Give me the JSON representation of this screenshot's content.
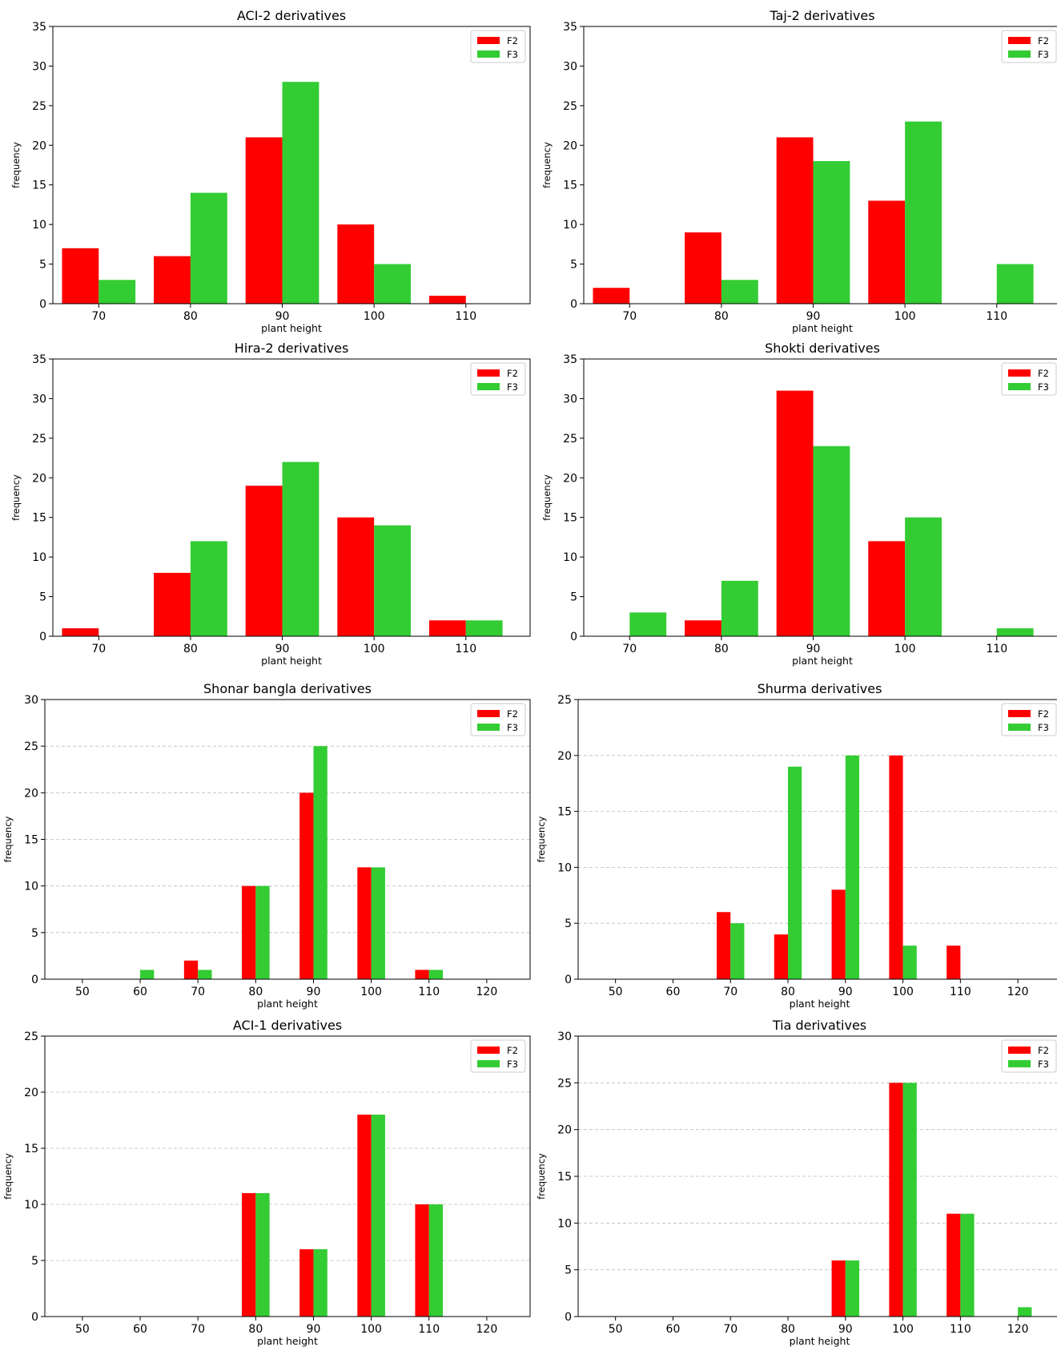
{
  "colors": {
    "F2": "#ff0000",
    "F3": "#33cc33"
  },
  "chart_data": [
    {
      "type": "bar",
      "title": "ACI-2 derivatives",
      "xlabel": "plant height",
      "ylabel": "frequency",
      "categories": [
        70,
        80,
        90,
        100,
        110
      ],
      "xlim": [
        65,
        117
      ],
      "ylim": [
        0,
        35
      ],
      "yticks": [
        0,
        5,
        10,
        15,
        20,
        25,
        30,
        35
      ],
      "xticks": [
        70,
        80,
        90,
        100,
        110
      ],
      "grid": false,
      "legend": "top-right",
      "series": [
        {
          "name": "F2",
          "values": [
            7,
            6,
            21,
            10,
            1
          ]
        },
        {
          "name": "F3",
          "values": [
            3,
            14,
            28,
            5,
            0
          ]
        }
      ]
    },
    {
      "type": "bar",
      "title": "Taj-2 derivatives",
      "xlabel": "plant height",
      "ylabel": "frequency",
      "categories": [
        70,
        80,
        90,
        100,
        110
      ],
      "xlim": [
        65,
        117
      ],
      "ylim": [
        0,
        35
      ],
      "yticks": [
        0,
        5,
        10,
        15,
        20,
        25,
        30,
        35
      ],
      "xticks": [
        70,
        80,
        90,
        100,
        110
      ],
      "grid": false,
      "legend": "top-right",
      "series": [
        {
          "name": "F2",
          "values": [
            2,
            9,
            21,
            13,
            0
          ]
        },
        {
          "name": "F3",
          "values": [
            0,
            3,
            18,
            23,
            5
          ]
        }
      ]
    },
    {
      "type": "bar",
      "title": "Hira-2 derivatives",
      "xlabel": "plant height",
      "ylabel": "frequency",
      "categories": [
        70,
        80,
        90,
        100,
        110
      ],
      "xlim": [
        65,
        117
      ],
      "ylim": [
        0,
        35
      ],
      "yticks": [
        0,
        5,
        10,
        15,
        20,
        25,
        30,
        35
      ],
      "xticks": [
        70,
        80,
        90,
        100,
        110
      ],
      "grid": false,
      "legend": "top-right",
      "series": [
        {
          "name": "F2",
          "values": [
            1,
            8,
            19,
            15,
            2
          ]
        },
        {
          "name": "F3",
          "values": [
            0,
            12,
            22,
            14,
            2
          ]
        }
      ]
    },
    {
      "type": "bar",
      "title": "Shokti derivatives",
      "xlabel": "plant height",
      "ylabel": "frequency",
      "categories": [
        70,
        80,
        90,
        100,
        110
      ],
      "xlim": [
        65,
        117
      ],
      "ylim": [
        0,
        35
      ],
      "yticks": [
        0,
        5,
        10,
        15,
        20,
        25,
        30,
        35
      ],
      "xticks": [
        70,
        80,
        90,
        100,
        110
      ],
      "grid": false,
      "legend": "top-right",
      "series": [
        {
          "name": "F2",
          "values": [
            0,
            2,
            31,
            12,
            0
          ]
        },
        {
          "name": "F3",
          "values": [
            3,
            7,
            24,
            15,
            1
          ]
        }
      ]
    },
    {
      "type": "bar",
      "title": "Shonar bangla derivatives",
      "xlabel": "plant height",
      "ylabel": "frequency",
      "categories": [
        50,
        60,
        70,
        80,
        90,
        100,
        110,
        120
      ],
      "xlim": [
        43.5,
        127.5
      ],
      "ylim": [
        0,
        30
      ],
      "yticks": [
        0,
        5,
        10,
        15,
        20,
        25,
        30
      ],
      "xticks": [
        50,
        60,
        70,
        80,
        90,
        100,
        110,
        120
      ],
      "grid": true,
      "legend": "top-right",
      "series": [
        {
          "name": "F2",
          "values": [
            0,
            0,
            2,
            10,
            20,
            12,
            1,
            0
          ]
        },
        {
          "name": "F3",
          "values": [
            0,
            1,
            1,
            10,
            25,
            12,
            1,
            0
          ]
        }
      ]
    },
    {
      "type": "bar",
      "title": "Shurma derivatives",
      "xlabel": "plant height",
      "ylabel": "frequency",
      "categories": [
        50,
        60,
        70,
        80,
        90,
        100,
        110,
        120
      ],
      "xlim": [
        43.5,
        127.5
      ],
      "ylim": [
        0,
        25
      ],
      "yticks": [
        0,
        5,
        10,
        15,
        20,
        25
      ],
      "xticks": [
        50,
        60,
        70,
        80,
        90,
        100,
        110,
        120
      ],
      "grid": true,
      "legend": "top-right",
      "series": [
        {
          "name": "F2",
          "values": [
            0,
            0,
            6,
            4,
            8,
            20,
            3,
            0
          ]
        },
        {
          "name": "F3",
          "values": [
            0,
            0,
            5,
            19,
            20,
            3,
            0,
            0
          ]
        }
      ]
    },
    {
      "type": "bar",
      "title": "ACI-1 derivatives",
      "xlabel": "plant height",
      "ylabel": "frequency",
      "categories": [
        50,
        60,
        70,
        80,
        90,
        100,
        110,
        120
      ],
      "xlim": [
        43.5,
        127.5
      ],
      "ylim": [
        0,
        25
      ],
      "yticks": [
        0,
        5,
        10,
        15,
        20,
        25
      ],
      "xticks": [
        50,
        60,
        70,
        80,
        90,
        100,
        110,
        120
      ],
      "grid": true,
      "legend": "top-right",
      "series": [
        {
          "name": "F2",
          "values": [
            0,
            0,
            0,
            11,
            6,
            18,
            10,
            0
          ]
        },
        {
          "name": "F3",
          "values": [
            0,
            0,
            0,
            11,
            6,
            18,
            10,
            0
          ]
        }
      ]
    },
    {
      "type": "bar",
      "title": "Tia derivatives",
      "xlabel": "plant height",
      "ylabel": "frequency",
      "categories": [
        50,
        60,
        70,
        80,
        90,
        100,
        110,
        120
      ],
      "xlim": [
        43.5,
        127.5
      ],
      "ylim": [
        0,
        30
      ],
      "yticks": [
        0,
        5,
        10,
        15,
        20,
        25,
        30
      ],
      "xticks": [
        50,
        60,
        70,
        80,
        90,
        100,
        110,
        120
      ],
      "grid": true,
      "legend": "top-right",
      "series": [
        {
          "name": "F2",
          "values": [
            0,
            0,
            0,
            0,
            6,
            25,
            11,
            0
          ]
        },
        {
          "name": "F3",
          "values": [
            0,
            0,
            0,
            0,
            6,
            25,
            11,
            1
          ]
        }
      ]
    }
  ]
}
